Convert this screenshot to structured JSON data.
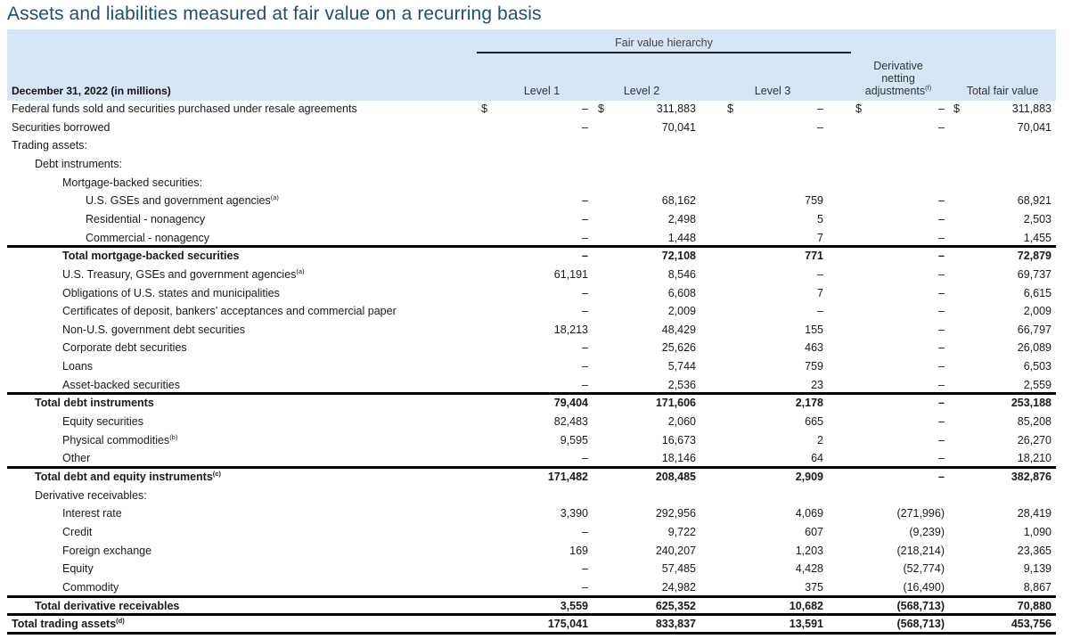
{
  "title": "Assets and liabilities measured at fair value on a recurring basis",
  "header": {
    "row_header": "December 31, 2022 (in millions)",
    "fair_value_hierarchy": "Fair value hierarchy",
    "level1": "Level 1",
    "level2": "Level 2",
    "level3": "Level 3",
    "derivative_line1": "Derivative",
    "derivative_line2": "netting",
    "derivative_line3": "adjustments",
    "derivative_note": "(f)",
    "total": "Total fair value"
  },
  "currency_symbol": "$",
  "rows": [
    {
      "label": "Federal funds sold and securities purchased under resale agreements",
      "indent": 0,
      "l1": "–",
      "l2": "311,883",
      "l3": "–",
      "l4": "–",
      "l5": "311,883",
      "dollar": true
    },
    {
      "label": "Securities borrowed",
      "indent": 0,
      "l1": "–",
      "l2": "70,041",
      "l3": "–",
      "l4": "–",
      "l5": "70,041"
    },
    {
      "label": "Trading assets:",
      "indent": 0
    },
    {
      "label": "Debt instruments:",
      "indent": 1
    },
    {
      "label": "Mortgage-backed securities:",
      "indent": 2
    },
    {
      "label": "U.S. GSEs and government agencies",
      "note": "(a)",
      "indent": 3,
      "l1": "–",
      "l2": "68,162",
      "l3": "759",
      "l4": "–",
      "l5": "68,921"
    },
    {
      "label": "Residential - nonagency",
      "indent": 3,
      "l1": "–",
      "l2": "2,498",
      "l3": "5",
      "l4": "–",
      "l5": "2,503"
    },
    {
      "label": "Commercial - nonagency",
      "indent": 3,
      "l1": "–",
      "l2": "1,448",
      "l3": "7",
      "l4": "–",
      "l5": "1,455",
      "rule_after": true
    },
    {
      "label": "Total mortgage-backed securities",
      "indent": 2,
      "total": true,
      "l1": "–",
      "l2": "72,108",
      "l3": "771",
      "l4": "–",
      "l5": "72,879"
    },
    {
      "label": "U.S. Treasury, GSEs and government agencies",
      "note": "(a)",
      "indent": 2,
      "l1": "61,191",
      "l2": "8,546",
      "l3": "–",
      "l4": "–",
      "l5": "69,737"
    },
    {
      "label": "Obligations of U.S. states and municipalities",
      "indent": 2,
      "l1": "–",
      "l2": "6,608",
      "l3": "7",
      "l4": "–",
      "l5": "6,615"
    },
    {
      "label": "Certificates of deposit, bankers’ acceptances and commercial paper",
      "indent": 2,
      "l1": "–",
      "l2": "2,009",
      "l3": "–",
      "l4": "–",
      "l5": "2,009"
    },
    {
      "label": "Non-U.S. government debt securities",
      "indent": 2,
      "l1": "18,213",
      "l2": "48,429",
      "l3": "155",
      "l4": "–",
      "l5": "66,797"
    },
    {
      "label": "Corporate debt securities",
      "indent": 2,
      "l1": "–",
      "l2": "25,626",
      "l3": "463",
      "l4": "–",
      "l5": "26,089"
    },
    {
      "label": "Loans",
      "indent": 2,
      "l1": "–",
      "l2": "5,744",
      "l3": "759",
      "l4": "–",
      "l5": "6,503"
    },
    {
      "label": "Asset-backed securities",
      "indent": 2,
      "l1": "–",
      "l2": "2,536",
      "l3": "23",
      "l4": "–",
      "l5": "2,559",
      "rule_after": true
    },
    {
      "label": "Total debt instruments",
      "indent": 1,
      "total": true,
      "l1": "79,404",
      "l2": "171,606",
      "l3": "2,178",
      "l4": "–",
      "l5": "253,188"
    },
    {
      "label": "Equity securities",
      "indent": 2,
      "l1": "82,483",
      "l2": "2,060",
      "l3": "665",
      "l4": "–",
      "l5": "85,208"
    },
    {
      "label": "Physical commodities",
      "note": "(b)",
      "indent": 2,
      "l1": "9,595",
      "l2": "16,673",
      "l3": "2",
      "l4": "–",
      "l5": "26,270"
    },
    {
      "label": "Other",
      "indent": 2,
      "l1": "–",
      "l2": "18,146",
      "l3": "64",
      "l4": "–",
      "l5": "18,210",
      "rule_after": true
    },
    {
      "label": "Total debt and equity instruments",
      "note": "(c)",
      "indent": 1,
      "total": true,
      "l1": "171,482",
      "l2": "208,485",
      "l3": "2,909",
      "l4": "–",
      "l5": "382,876"
    },
    {
      "label": "Derivative receivables:",
      "indent": 1
    },
    {
      "label": "Interest rate",
      "indent": 2,
      "l1": "3,390",
      "l2": "292,956",
      "l3": "4,069",
      "l4": "(271,996)",
      "l5": "28,419"
    },
    {
      "label": "Credit",
      "indent": 2,
      "l1": "–",
      "l2": "9,722",
      "l3": "607",
      "l4": "(9,239)",
      "l5": "1,090"
    },
    {
      "label": "Foreign exchange",
      "indent": 2,
      "l1": "169",
      "l2": "240,207",
      "l3": "1,203",
      "l4": "(218,214)",
      "l5": "23,365"
    },
    {
      "label": "Equity",
      "indent": 2,
      "l1": "–",
      "l2": "57,485",
      "l3": "4,428",
      "l4": "(52,774)",
      "l5": "9,139"
    },
    {
      "label": "Commodity",
      "indent": 2,
      "l1": "–",
      "l2": "24,982",
      "l3": "375",
      "l4": "(16,490)",
      "l5": "8,867",
      "rule_after": true
    },
    {
      "label": "Total derivative receivables",
      "indent": 1,
      "total": true,
      "l1": "3,559",
      "l2": "625,352",
      "l3": "10,682",
      "l4": "(568,713)",
      "l5": "70,880",
      "rule_after": true
    },
    {
      "label": "Total trading assets",
      "note": "(d)",
      "indent": 0,
      "total": true,
      "l1": "175,041",
      "l2": "833,837",
      "l3": "13,591",
      "l4": "(568,713)",
      "l5": "453,756",
      "rule_after": true
    }
  ]
}
